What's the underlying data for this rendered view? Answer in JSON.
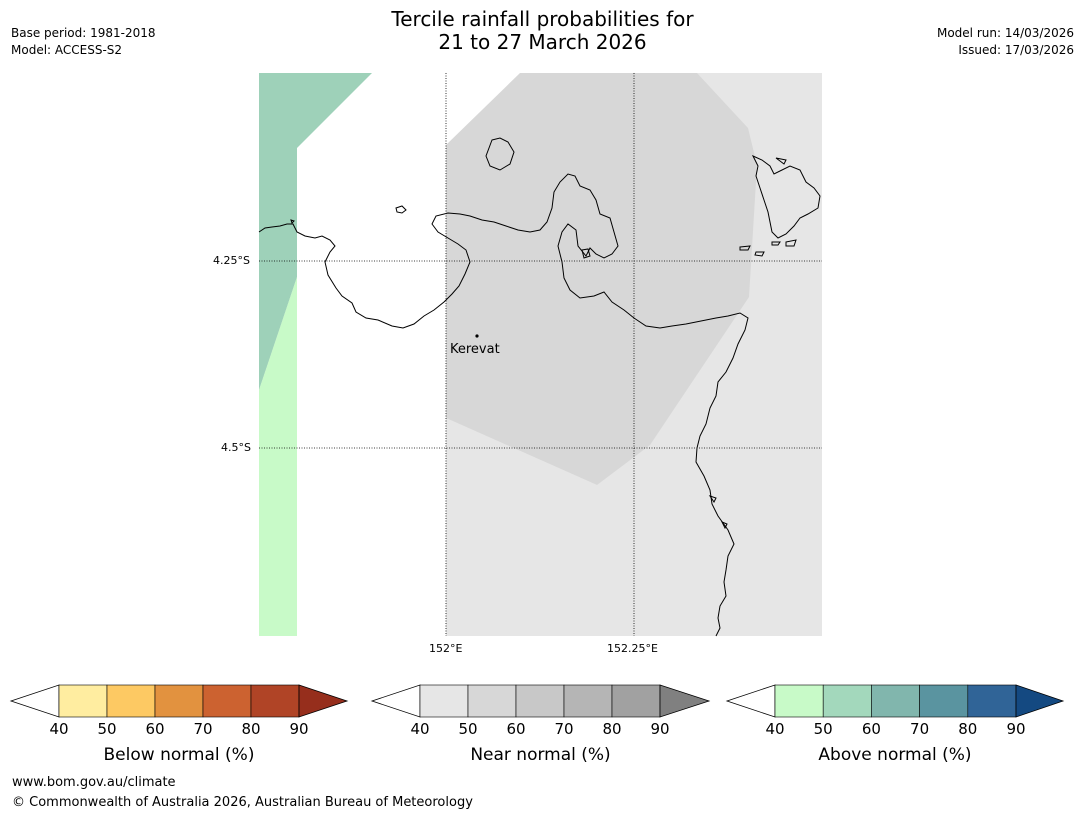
{
  "header": {
    "title_line1": "Tercile rainfall probabilities for",
    "title_line2": "21 to 27 March 2026",
    "base_period": "Base period: 1981-2018",
    "model": "Model: ACCESS-S2",
    "model_run": "Model run: 14/03/2026",
    "issued": "Issued: 17/03/2026"
  },
  "map": {
    "lat_labels": [
      "4.25°S",
      "4.5°S"
    ],
    "lon_labels": [
      "152°E",
      "152.25°E"
    ],
    "places": [
      {
        "name": "Kerevat"
      }
    ],
    "colors": {
      "land_outline": "#000000",
      "near_normal_50": "#d7d7d7",
      "near_normal_40": "#e6e6e6",
      "above_normal_50": "#9ed1b9",
      "above_normal_40": "#c8fac8"
    }
  },
  "legends": [
    {
      "title": "Below normal (%)",
      "ticks": [
        "40",
        "50",
        "60",
        "70",
        "80",
        "90"
      ],
      "colors": [
        "#ffffff",
        "#ffeda0",
        "#fdc963",
        "#e2923f",
        "#cc6230",
        "#b04426",
        "#962e1c"
      ]
    },
    {
      "title": "Near normal (%)",
      "ticks": [
        "40",
        "50",
        "60",
        "70",
        "80",
        "90"
      ],
      "colors": [
        "#ffffff",
        "#e6e6e6",
        "#d7d7d7",
        "#c8c8c8",
        "#b5b5b5",
        "#a1a1a1",
        "#808080"
      ]
    },
    {
      "title": "Above normal (%)",
      "ticks": [
        "40",
        "50",
        "60",
        "70",
        "80",
        "90"
      ],
      "colors": [
        "#ffffff",
        "#c8fac8",
        "#a3d8bc",
        "#81b6ad",
        "#5a94a0",
        "#306497",
        "#144981"
      ]
    }
  ],
  "footer": {
    "url": "www.bom.gov.au/climate",
    "copyright": "© Commonwealth of Australia 2026, Australian Bureau of Meteorology"
  }
}
